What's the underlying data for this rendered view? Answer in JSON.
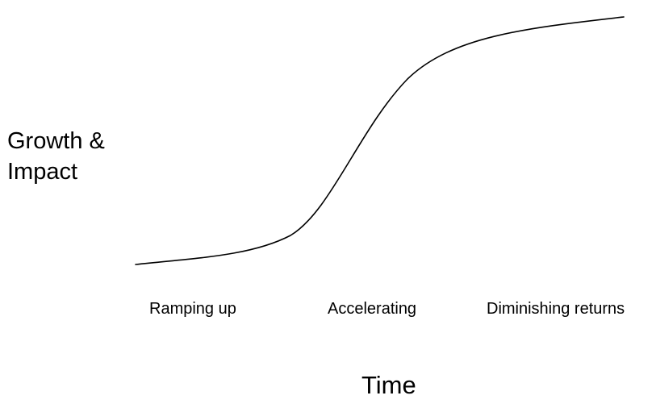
{
  "diagram": {
    "y_label_lines": [
      "Growth &",
      "Impact"
    ],
    "x_label": "Time",
    "stages": [
      "Ramping up",
      "Accelerating",
      "Diminishing returns"
    ],
    "curve_color": "#000000",
    "curve_shape": "s-curve"
  }
}
